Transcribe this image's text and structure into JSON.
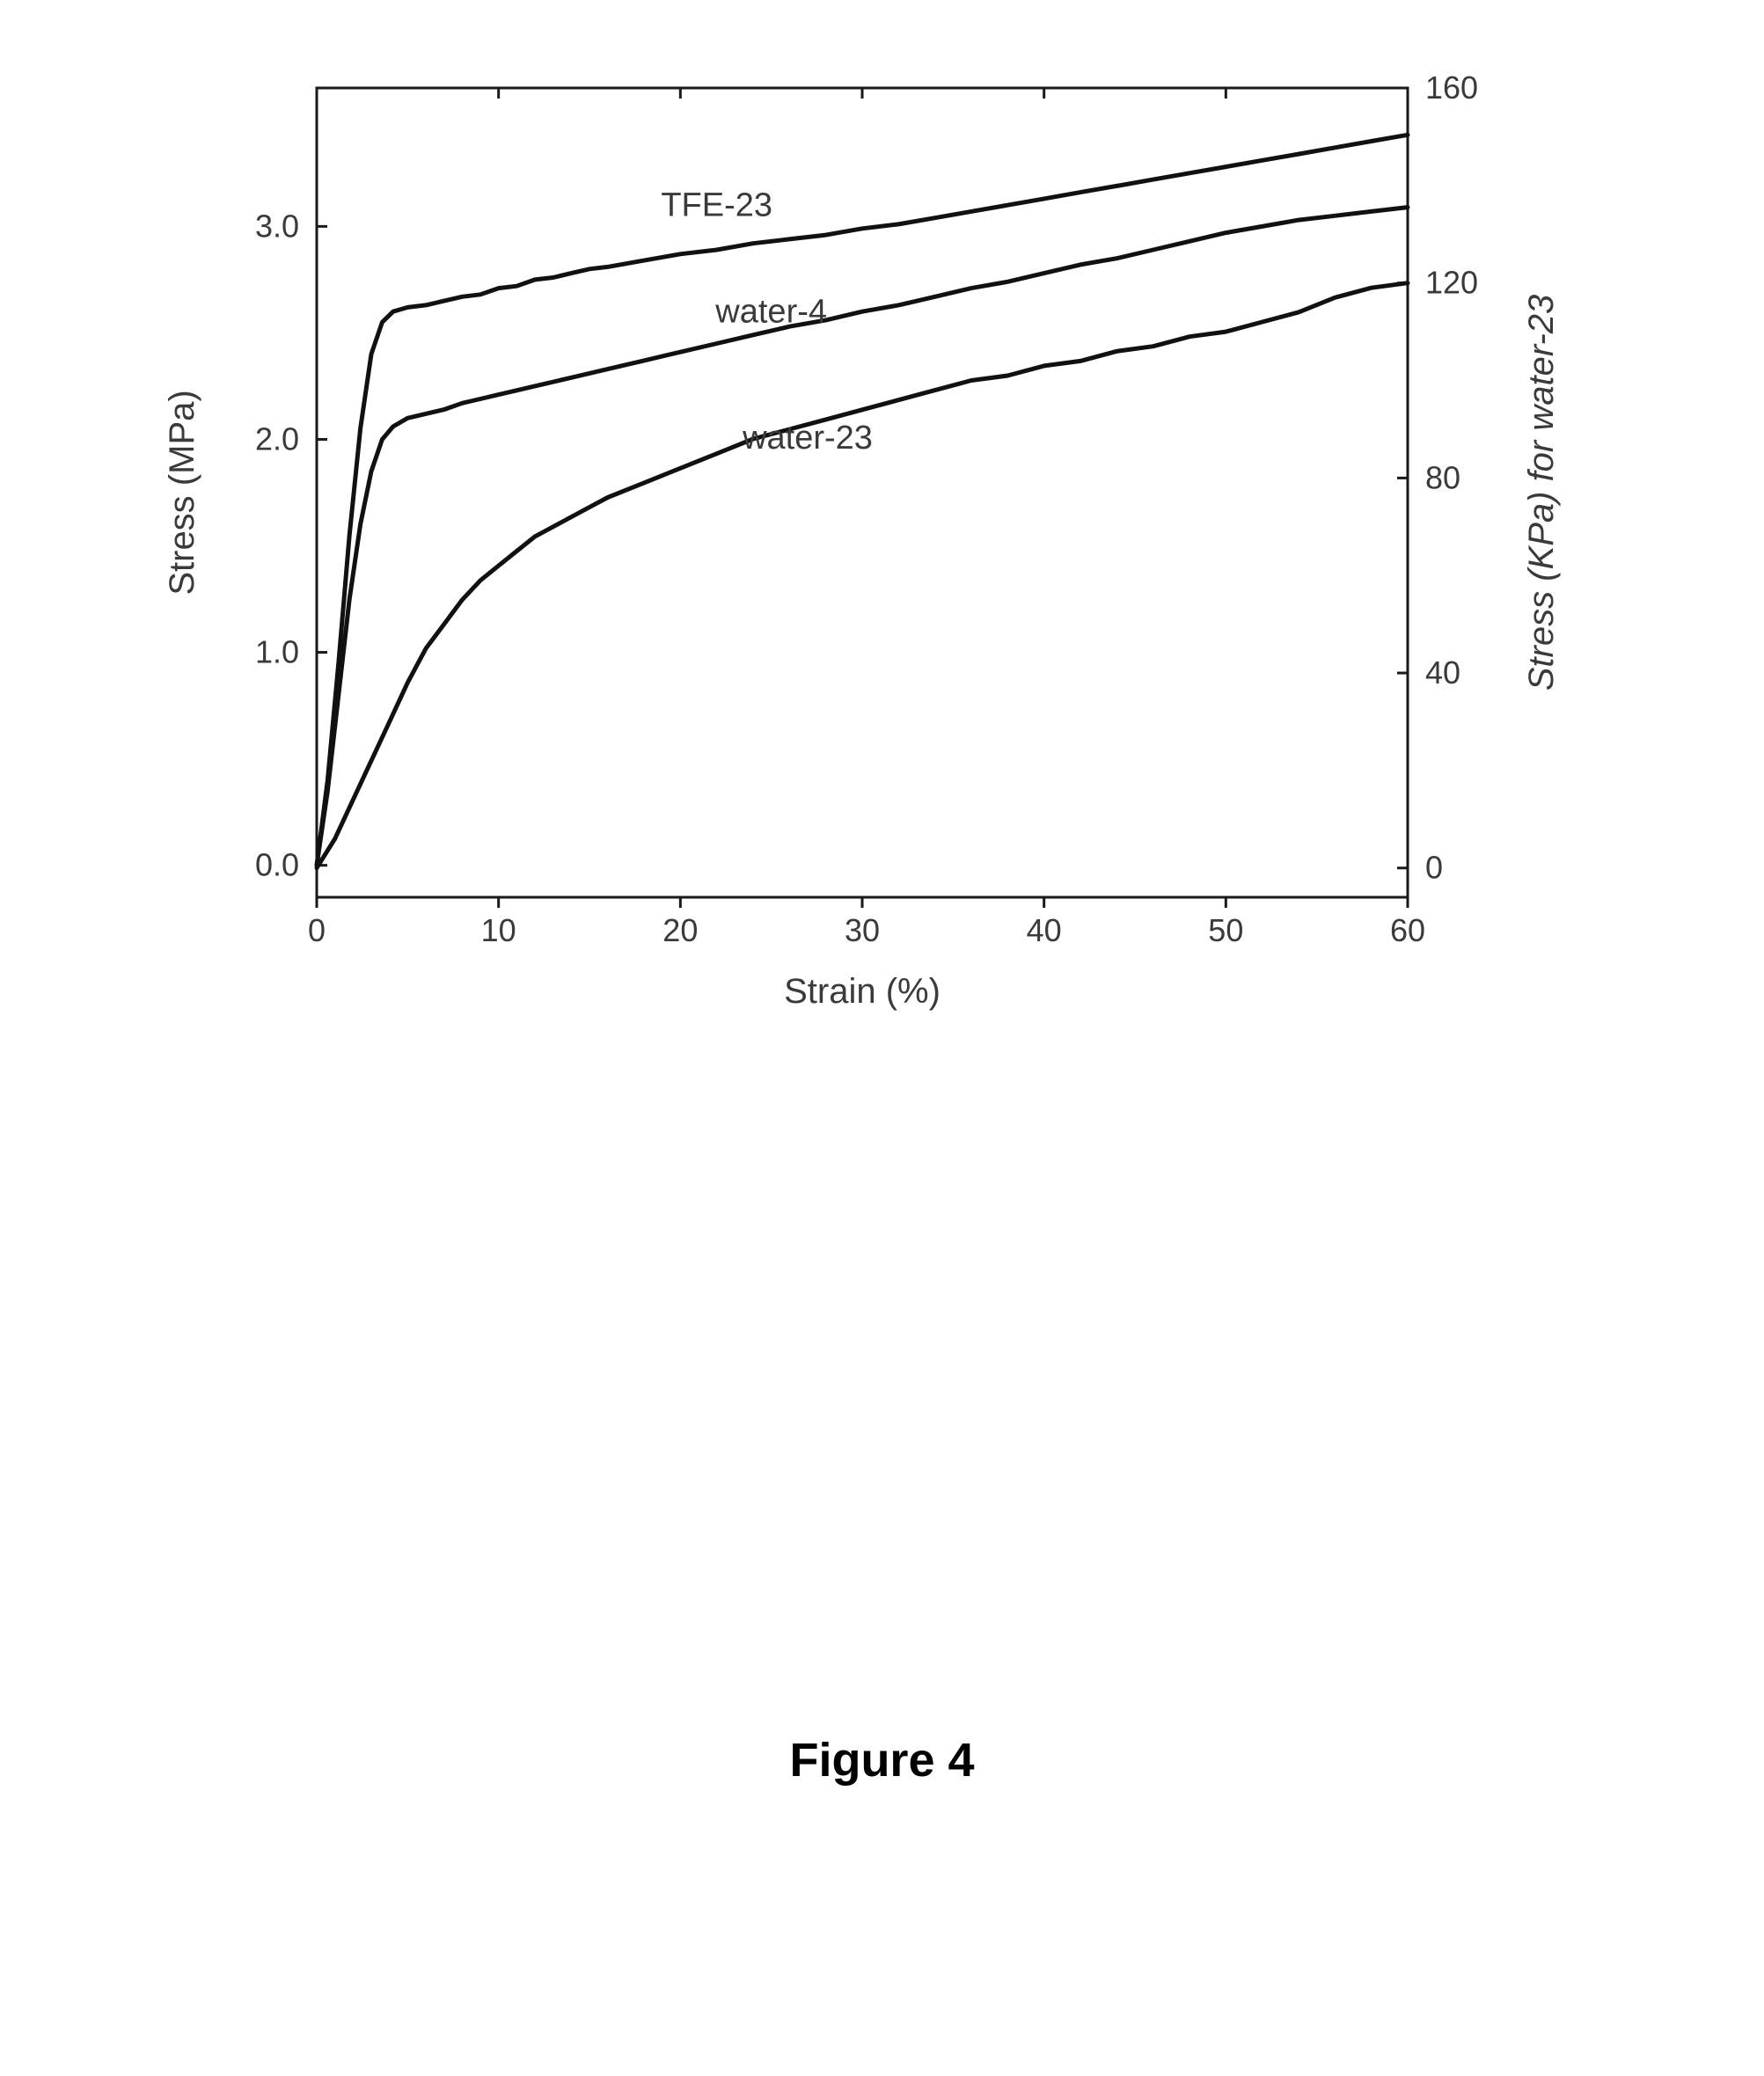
{
  "caption": "Figure 4",
  "chart": {
    "type": "line",
    "background_color": "#ffffff",
    "axis_color": "#1a1a1a",
    "tick_color": "#1a1a1a",
    "line_color": "#111111",
    "line_width": 5,
    "frame_width": 3,
    "tick_length": 12,
    "xlabel": "Strain (%)",
    "ylabel_left": "Stress (MPa)",
    "ylabel_right": "Stress (KPa) for water-23",
    "label_fontsize": 40,
    "tick_fontsize": 36,
    "series_label_fontsize": 38,
    "label_color": "#3a3a3a",
    "italic_y_right": true,
    "x_axis": {
      "min": 0,
      "max": 60,
      "ticks": [
        0,
        10,
        20,
        30,
        40,
        50,
        60
      ]
    },
    "y_left": {
      "min": -0.15,
      "max": 3.65,
      "ticks": [
        0.0,
        1.0,
        2.0,
        3.0
      ],
      "tick_labels": [
        "0.0",
        "1.0",
        "2.0",
        "3.0"
      ]
    },
    "y_right": {
      "min": -6,
      "max": 160,
      "ticks": [
        0,
        40,
        80,
        120,
        160
      ]
    },
    "series": [
      {
        "name": "TFE-23",
        "axis": "left",
        "label_pos": {
          "x": 22,
          "y": 3.05
        },
        "points": [
          [
            0,
            0.0
          ],
          [
            0.6,
            0.4
          ],
          [
            1.2,
            0.95
          ],
          [
            1.8,
            1.55
          ],
          [
            2.4,
            2.05
          ],
          [
            3.0,
            2.4
          ],
          [
            3.6,
            2.55
          ],
          [
            4.2,
            2.6
          ],
          [
            5,
            2.62
          ],
          [
            6,
            2.63
          ],
          [
            7,
            2.65
          ],
          [
            8,
            2.67
          ],
          [
            9,
            2.68
          ],
          [
            10,
            2.71
          ],
          [
            11,
            2.72
          ],
          [
            12,
            2.75
          ],
          [
            13,
            2.76
          ],
          [
            14,
            2.78
          ],
          [
            15,
            2.8
          ],
          [
            16,
            2.81
          ],
          [
            18,
            2.84
          ],
          [
            20,
            2.87
          ],
          [
            22,
            2.89
          ],
          [
            24,
            2.92
          ],
          [
            26,
            2.94
          ],
          [
            28,
            2.96
          ],
          [
            30,
            2.99
          ],
          [
            32,
            3.01
          ],
          [
            34,
            3.04
          ],
          [
            36,
            3.07
          ],
          [
            38,
            3.1
          ],
          [
            40,
            3.13
          ],
          [
            42,
            3.16
          ],
          [
            44,
            3.19
          ],
          [
            46,
            3.22
          ],
          [
            48,
            3.25
          ],
          [
            50,
            3.28
          ],
          [
            52,
            3.31
          ],
          [
            54,
            3.34
          ],
          [
            56,
            3.37
          ],
          [
            58,
            3.4
          ],
          [
            60,
            3.43
          ]
        ]
      },
      {
        "name": "water-4",
        "axis": "left",
        "label_pos": {
          "x": 25,
          "y": 2.55
        },
        "points": [
          [
            0,
            0.0
          ],
          [
            0.6,
            0.35
          ],
          [
            1.2,
            0.8
          ],
          [
            1.8,
            1.25
          ],
          [
            2.4,
            1.6
          ],
          [
            3.0,
            1.85
          ],
          [
            3.6,
            2.0
          ],
          [
            4.2,
            2.06
          ],
          [
            5,
            2.1
          ],
          [
            6,
            2.12
          ],
          [
            7,
            2.14
          ],
          [
            8,
            2.17
          ],
          [
            9,
            2.19
          ],
          [
            10,
            2.21
          ],
          [
            11,
            2.23
          ],
          [
            12,
            2.25
          ],
          [
            14,
            2.29
          ],
          [
            16,
            2.33
          ],
          [
            18,
            2.37
          ],
          [
            20,
            2.41
          ],
          [
            22,
            2.45
          ],
          [
            24,
            2.49
          ],
          [
            26,
            2.53
          ],
          [
            28,
            2.56
          ],
          [
            30,
            2.6
          ],
          [
            32,
            2.63
          ],
          [
            34,
            2.67
          ],
          [
            36,
            2.71
          ],
          [
            38,
            2.74
          ],
          [
            40,
            2.78
          ],
          [
            42,
            2.82
          ],
          [
            44,
            2.85
          ],
          [
            46,
            2.89
          ],
          [
            48,
            2.93
          ],
          [
            50,
            2.97
          ],
          [
            52,
            3.0
          ],
          [
            54,
            3.03
          ],
          [
            56,
            3.05
          ],
          [
            58,
            3.07
          ],
          [
            60,
            3.09
          ]
        ]
      },
      {
        "name": "water-23",
        "axis": "right",
        "label_pos": {
          "x": 27,
          "y_right": 86
        },
        "points": [
          [
            0,
            0
          ],
          [
            1,
            6
          ],
          [
            2,
            14
          ],
          [
            3,
            22
          ],
          [
            4,
            30
          ],
          [
            5,
            38
          ],
          [
            6,
            45
          ],
          [
            7,
            50
          ],
          [
            8,
            55
          ],
          [
            9,
            59
          ],
          [
            10,
            62
          ],
          [
            11,
            65
          ],
          [
            12,
            68
          ],
          [
            13,
            70
          ],
          [
            14,
            72
          ],
          [
            15,
            74
          ],
          [
            16,
            76
          ],
          [
            18,
            79
          ],
          [
            20,
            82
          ],
          [
            22,
            85
          ],
          [
            24,
            88
          ],
          [
            26,
            90
          ],
          [
            28,
            92
          ],
          [
            30,
            94
          ],
          [
            32,
            96
          ],
          [
            34,
            98
          ],
          [
            36,
            100
          ],
          [
            38,
            101
          ],
          [
            40,
            103
          ],
          [
            42,
            104
          ],
          [
            44,
            106
          ],
          [
            46,
            107
          ],
          [
            48,
            109
          ],
          [
            50,
            110
          ],
          [
            52,
            112
          ],
          [
            54,
            114
          ],
          [
            56,
            117
          ],
          [
            58,
            119
          ],
          [
            60,
            120
          ]
        ]
      }
    ]
  }
}
